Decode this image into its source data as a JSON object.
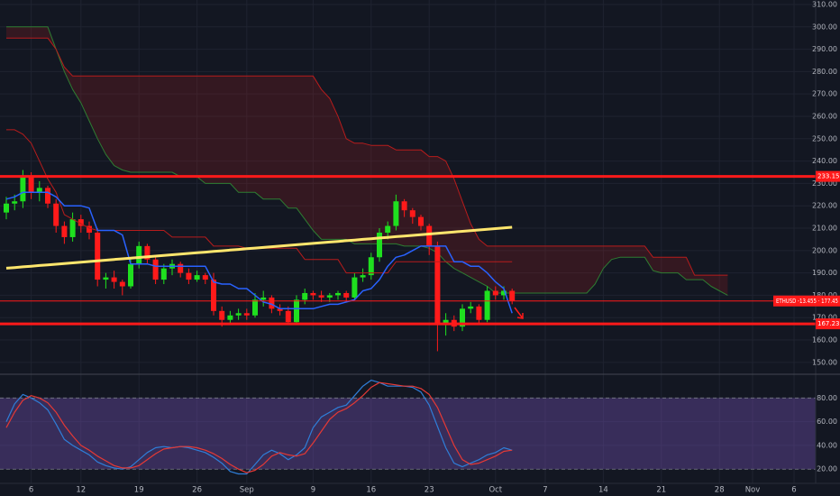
{
  "chart_data": [
    {
      "type": "candlestick",
      "open": [
        217,
        221,
        222,
        233,
        226,
        228,
        221,
        211,
        206,
        214,
        211,
        208,
        187,
        188,
        186,
        184,
        194,
        202,
        196,
        187,
        192,
        194,
        190,
        187,
        189,
        187,
        173,
        169,
        171,
        172,
        171,
        178,
        179,
        174,
        173,
        168,
        178,
        181,
        180,
        179,
        180,
        181,
        179,
        188,
        189,
        197,
        208,
        211,
        222,
        218,
        215,
        211,
        202,
        167,
        169,
        166,
        174,
        175,
        169,
        182,
        180,
        182
      ],
      "high": [
        224,
        225,
        236,
        235,
        231,
        229,
        223,
        213,
        217,
        216,
        213,
        210,
        190,
        191,
        187,
        196,
        204,
        203,
        198,
        194,
        196,
        195,
        192,
        191,
        190,
        190,
        175,
        173,
        174,
        174,
        181,
        182,
        180,
        176,
        175,
        180,
        183,
        182,
        182,
        181,
        182,
        182,
        190,
        192,
        199,
        210,
        213,
        225,
        223,
        219,
        216,
        212,
        204,
        172,
        171,
        176,
        177,
        176,
        184,
        184,
        184,
        183
      ],
      "low": [
        214,
        218,
        219,
        223,
        222,
        219,
        208,
        203,
        204,
        208,
        205,
        184,
        183,
        183,
        180,
        183,
        192,
        194,
        185,
        185,
        189,
        188,
        185,
        186,
        185,
        171,
        166,
        167,
        169,
        169,
        170,
        175,
        172,
        171,
        167,
        167,
        176,
        178,
        177,
        177,
        178,
        177,
        178,
        186,
        187,
        195,
        205,
        209,
        215,
        212,
        209,
        198,
        155,
        162,
        164,
        164,
        172,
        167,
        168,
        178,
        178,
        176
      ],
      "close": [
        221,
        222,
        233,
        226,
        228,
        221,
        211,
        206,
        214,
        211,
        208,
        187,
        188,
        186,
        184,
        194,
        202,
        196,
        187,
        192,
        194,
        190,
        187,
        189,
        187,
        173,
        169,
        171,
        172,
        171,
        178,
        179,
        174,
        173,
        168,
        178,
        181,
        180,
        179,
        180,
        181,
        179,
        188,
        189,
        197,
        208,
        211,
        222,
        218,
        215,
        211,
        202,
        167,
        169,
        166,
        174,
        175,
        169,
        182,
        180,
        182,
        177.45
      ],
      "up_color": "#1fe01f",
      "down_color": "#ff1a1a",
      "ylim": [
        144.7,
        312
      ],
      "yticks": [
        {
          "value": 150,
          "label": "150.00"
        },
        {
          "value": 160,
          "label": "160.00"
        },
        {
          "value": 170,
          "label": "170.00"
        },
        {
          "value": 180,
          "label": "180.00"
        },
        {
          "value": 190,
          "label": "190.00"
        },
        {
          "value": 200,
          "label": "200.00"
        },
        {
          "value": 210,
          "label": "210.00"
        },
        {
          "value": 220,
          "label": "220.00"
        },
        {
          "value": 230,
          "label": "230.00"
        },
        {
          "value": 240,
          "label": "240.00"
        },
        {
          "value": 250,
          "label": "250.00"
        },
        {
          "value": 260,
          "label": "260.00"
        },
        {
          "value": 270,
          "label": "270.00"
        },
        {
          "value": 280,
          "label": "280.00"
        },
        {
          "value": 290,
          "label": "290.00"
        },
        {
          "value": 300,
          "label": "300.00"
        },
        {
          "value": 310,
          "label": "310.00"
        }
      ],
      "grid": true,
      "levels": [
        233.15,
        167.23
      ],
      "level_color": "#ff1a1a",
      "price_label": "ETHUSD -13.455 · 177.45",
      "cloud": {
        "span_a": [
          300,
          300,
          300,
          300,
          300,
          300,
          290,
          280,
          272,
          266,
          258,
          250,
          243,
          238,
          236,
          235,
          235,
          235,
          235,
          235,
          235,
          233,
          233,
          233,
          230,
          230,
          230,
          230,
          226,
          226,
          226,
          223,
          223,
          223,
          219,
          219,
          214,
          209,
          205,
          205,
          205,
          205,
          203,
          203,
          203,
          203,
          203,
          203,
          202,
          202,
          202,
          201,
          199,
          195,
          192,
          190,
          188,
          186,
          184,
          181,
          181,
          181,
          181,
          181,
          181,
          181,
          181,
          181,
          181,
          181,
          181,
          185,
          192,
          196,
          197,
          197,
          197,
          197,
          191,
          190,
          190,
          190,
          187,
          187,
          187,
          184,
          182,
          180
        ],
        "span_b": [
          295,
          295,
          295,
          295,
          295,
          295,
          290,
          282,
          278,
          278,
          278,
          278,
          278,
          278,
          278,
          278,
          278,
          278,
          278,
          278,
          278,
          278,
          278,
          278,
          278,
          278,
          278,
          278,
          278,
          278,
          278,
          278,
          278,
          278,
          278,
          278,
          278,
          278,
          272,
          268,
          260,
          250,
          248,
          248,
          247,
          247,
          247,
          245,
          245,
          245,
          245,
          242,
          242,
          240,
          232,
          222,
          212,
          205,
          202,
          202,
          202,
          202,
          202,
          202,
          202,
          202,
          202,
          202,
          202,
          202,
          202,
          202,
          202,
          202,
          202,
          202,
          202,
          202,
          197,
          197,
          197,
          197,
          197,
          189,
          189,
          189,
          189,
          189
        ],
        "a_color": "#2e7d32",
        "b_color": "#b71c1c",
        "fill": "rgba(183,28,28,0.2)"
      },
      "lines": [
        {
          "color": "#b71c1c",
          "width": 1,
          "values": [
            254,
            254,
            252,
            248,
            240,
            232,
            226,
            216,
            214,
            212,
            210,
            209,
            209,
            209,
            209,
            209,
            209,
            209,
            209,
            209,
            206,
            206,
            206,
            206,
            206,
            202,
            202,
            202,
            202,
            201,
            201,
            201,
            201,
            201,
            201,
            201,
            196,
            196,
            196,
            196,
            196,
            190,
            190,
            190,
            190,
            190,
            190,
            195,
            195,
            195,
            195,
            195,
            195,
            195,
            195,
            195,
            195,
            195,
            195,
            195,
            195,
            195
          ]
        },
        {
          "color": "#2962ff",
          "width": 1.5,
          "values": [
            223,
            224,
            226,
            226,
            226,
            226,
            224,
            220,
            220,
            220,
            219,
            209,
            209,
            209,
            207,
            194,
            194,
            194,
            193,
            193,
            193,
            193,
            193,
            193,
            193,
            186,
            185,
            185,
            183,
            183,
            180,
            177,
            176,
            174,
            174,
            174,
            174,
            174,
            175,
            176,
            176,
            177,
            178,
            182,
            183,
            187,
            193,
            197,
            198,
            200,
            202,
            202,
            202,
            202,
            195,
            195,
            193,
            193,
            190,
            186,
            183,
            172
          ]
        },
        {
          "color": "#ffe66d",
          "width": 3,
          "values": [
            192.1,
            192.4,
            192.7,
            193.0,
            193.3,
            193.6,
            193.9,
            194.2,
            194.5,
            194.8,
            195.1,
            195.4,
            195.7,
            196.0,
            196.3,
            196.6,
            196.9,
            197.2,
            197.5,
            197.8,
            198.1,
            198.4,
            198.7,
            199.0,
            199.3,
            199.6,
            199.9,
            200.2,
            200.5,
            200.8,
            201.1,
            201.4,
            201.7,
            202.0,
            202.3,
            202.6,
            202.9,
            203.2,
            203.5,
            203.8,
            204.1,
            204.4,
            204.7,
            205.0,
            205.3,
            205.6,
            205.9,
            206.2,
            206.5,
            206.8,
            207.1,
            207.4,
            207.7,
            208.0,
            208.3,
            208.6,
            208.9,
            209.2,
            209.5,
            209.8,
            210.1,
            210.4
          ]
        }
      ]
    },
    {
      "type": "line",
      "ylim": [
        8,
        100
      ],
      "yticks": [
        {
          "value": 20,
          "label": "20.00"
        },
        {
          "value": 40,
          "label": "40.00"
        },
        {
          "value": 60,
          "label": "60.00"
        },
        {
          "value": 80,
          "label": "80.00"
        }
      ],
      "grid": true,
      "band": true,
      "band_color": "rgba(126,87,194,0.35)",
      "series": [
        {
          "color": "#2f7ed8",
          "values": [
            60,
            75,
            83,
            80,
            76,
            70,
            58,
            45,
            40,
            36,
            32,
            26,
            23,
            21,
            20,
            22,
            28,
            34,
            38,
            39,
            38,
            39,
            38,
            36,
            34,
            30,
            25,
            18,
            16,
            16,
            24,
            32,
            36,
            33,
            28,
            32,
            38,
            55,
            64,
            68,
            72,
            74,
            82,
            90,
            95,
            93,
            90,
            90,
            90,
            89,
            85,
            74,
            56,
            38,
            25,
            22,
            25,
            28,
            32,
            34,
            38,
            36
          ]
        },
        {
          "color": "#e53935",
          "values": [
            55,
            68,
            78,
            82,
            80,
            76,
            68,
            57,
            48,
            40,
            36,
            31,
            27,
            23,
            21,
            21,
            23,
            28,
            33,
            37,
            38,
            39,
            39,
            38,
            36,
            33,
            29,
            24,
            20,
            17,
            19,
            24,
            31,
            34,
            32,
            31,
            33,
            42,
            52,
            62,
            68,
            71,
            76,
            82,
            89,
            93,
            92,
            91,
            90,
            90,
            88,
            83,
            72,
            56,
            40,
            28,
            24,
            25,
            28,
            31,
            35,
            36
          ]
        }
      ]
    }
  ],
  "x_axis": {
    "labels": [
      "6",
      "12",
      "19",
      "26",
      "Sep",
      "9",
      "16",
      "23",
      "Oct",
      "7",
      "14",
      "21",
      "28",
      "Nov",
      "6"
    ]
  }
}
